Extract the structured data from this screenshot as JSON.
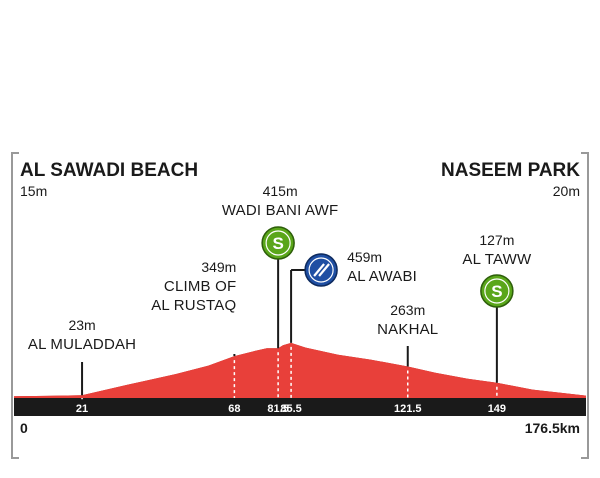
{
  "colors": {
    "profile_fill": "#e8403a",
    "profile_dark": "#b0201b",
    "track_band": "#1a1a1a",
    "sprint_green": "#5aa61a",
    "climb_blue": "#1f4fa3",
    "frame_gray": "#999999"
  },
  "start": {
    "name": "AL SAWADI BEACH",
    "altitude": "15m",
    "km": "0"
  },
  "finish": {
    "name": "NASEEM PARK",
    "altitude": "20m",
    "km": "176.5km"
  },
  "points": [
    {
      "km": 21,
      "km_label": "21",
      "altitude": "23m",
      "lines": [
        "AL MULADDAH"
      ],
      "icon": ""
    },
    {
      "km": 68,
      "km_label": "68",
      "altitude": "349m",
      "lines": [
        "CLIMB OF",
        "AL RUSTAQ"
      ],
      "icon": ""
    },
    {
      "km": 81.5,
      "km_label": "81.5",
      "altitude": "415m",
      "lines": [
        "WADI BANI AWF"
      ],
      "icon": "sprint-icon"
    },
    {
      "km": 85.5,
      "km_label": "85.5",
      "altitude": "459m",
      "lines": [
        "AL AWABI"
      ],
      "icon": "climb-icon"
    },
    {
      "km": 121.5,
      "km_label": "121.5",
      "altitude": "263m",
      "lines": [
        "NAKHAL"
      ],
      "icon": ""
    },
    {
      "km": 149,
      "km_label": "149",
      "altitude": "127m",
      "lines": [
        "AL TAWW"
      ],
      "icon": "sprint-icon"
    }
  ],
  "sprint_symbol": "S",
  "chart_data": {
    "type": "area",
    "title": "",
    "xlabel": "",
    "ylabel": "",
    "xlim": [
      0,
      176.5
    ],
    "ylim": [
      0,
      500
    ],
    "x_ticks": [
      21,
      68,
      81.5,
      85.5,
      121.5,
      149
    ],
    "series": [
      {
        "x": [
          0,
          10,
          21,
          35,
          50,
          60,
          68,
          74,
          78,
          81.5,
          83,
          85.5,
          90,
          100,
          110,
          121.5,
          130,
          140,
          149,
          160,
          170,
          176.5
        ],
        "values": [
          15,
          18,
          23,
          110,
          200,
          270,
          349,
          390,
          415,
          415,
          440,
          459,
          420,
          360,
          320,
          263,
          210,
          160,
          127,
          70,
          40,
          20
        ]
      }
    ]
  }
}
